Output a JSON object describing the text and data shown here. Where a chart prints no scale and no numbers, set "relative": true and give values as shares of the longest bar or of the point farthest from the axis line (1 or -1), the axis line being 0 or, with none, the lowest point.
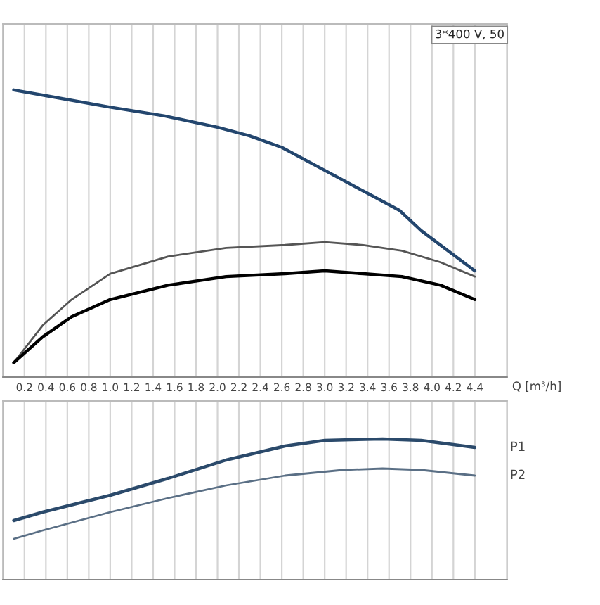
{
  "chart_data": [
    {
      "type": "line",
      "relative": true,
      "annotations": [
        "3*400 V, 50"
      ],
      "xlabel": "Q [m³/h]",
      "grid": "x",
      "tick_labels": "x",
      "legend": false,
      "xlim": [
        0.0,
        4.7
      ],
      "xticks": [
        0.2,
        0.4,
        0.6,
        0.8,
        {
          "value": 1.0,
          "label": "1.0"
        },
        1.2,
        1.4,
        1.6,
        1.8,
        {
          "value": 2.0,
          "label": "2.0"
        },
        2.2,
        2.4,
        2.6,
        2.8,
        {
          "value": 3.0,
          "label": "3.0"
        },
        3.2,
        3.4,
        3.6,
        3.8,
        {
          "value": 4.0,
          "label": "4.0"
        },
        4.2,
        4.4
      ],
      "series": [
        {
          "color": "#23466e",
          "x": [
            0.1,
            0.4,
            1.0,
            1.5,
            2.0,
            2.3,
            2.6,
            3.0,
            3.4,
            3.7,
            3.9,
            4.4
          ],
          "values": [
            1.0,
            0.98,
            0.94,
            0.91,
            0.87,
            0.84,
            0.8,
            0.72,
            0.64,
            0.58,
            0.51,
            0.37
          ]
        },
        {
          "color": "#555555",
          "x": [
            0.1,
            0.37,
            0.64,
            1.0,
            1.54,
            2.08,
            2.63,
            3.0,
            3.36,
            3.72,
            4.08,
            4.4
          ],
          "values": [
            0.05,
            0.18,
            0.27,
            0.36,
            0.42,
            0.45,
            0.46,
            0.47,
            0.46,
            0.44,
            0.4,
            0.35
          ]
        },
        {
          "color": "#000000",
          "x": [
            0.1,
            0.37,
            0.64,
            1.0,
            1.54,
            2.08,
            2.63,
            3.0,
            3.36,
            3.72,
            4.08,
            4.4
          ],
          "values": [
            0.05,
            0.14,
            0.21,
            0.27,
            0.32,
            0.35,
            0.36,
            0.37,
            0.36,
            0.35,
            0.32,
            0.27
          ]
        }
      ]
    },
    {
      "type": "line",
      "relative": true,
      "grid": "x",
      "tick_labels": false,
      "legend": false,
      "xlim": [
        0.0,
        4.7
      ],
      "xticks": [
        0.2,
        0.4,
        0.6,
        0.8,
        1.0,
        1.2,
        1.4,
        1.6,
        1.8,
        2.0,
        2.2,
        2.4,
        2.6,
        2.8,
        3.0,
        3.2,
        3.4,
        3.6,
        3.8,
        4.0,
        4.2,
        4.4
      ],
      "series": [
        {
          "name": "P1",
          "color": "#2b4a6b",
          "x": [
            0.1,
            0.37,
            1.0,
            1.54,
            2.08,
            2.63,
            3.0,
            3.54,
            3.9,
            4.4
          ],
          "values": [
            0.42,
            0.48,
            0.6,
            0.72,
            0.85,
            0.95,
            0.99,
            1.0,
            0.99,
            0.94
          ]
        },
        {
          "name": "P2",
          "color": "#5a6f85",
          "x": [
            0.1,
            0.37,
            1.0,
            1.54,
            2.08,
            2.63,
            3.17,
            3.54,
            3.9,
            4.4
          ],
          "values": [
            0.29,
            0.35,
            0.48,
            0.58,
            0.67,
            0.74,
            0.78,
            0.79,
            0.78,
            0.74
          ]
        }
      ]
    }
  ]
}
